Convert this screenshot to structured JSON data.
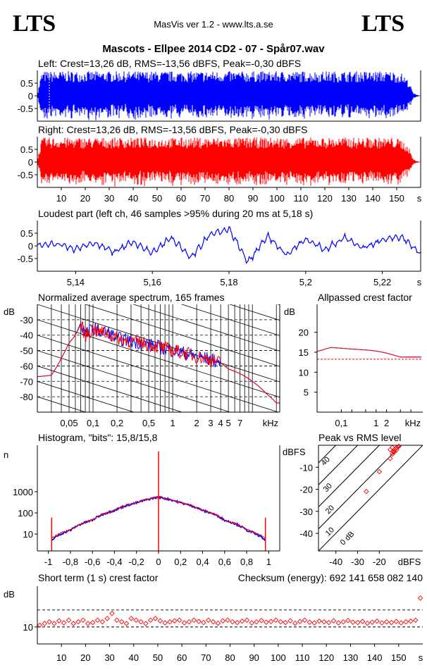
{
  "header": {
    "logo_left": "LTS",
    "logo_right": "LTS",
    "app_title": "MasVis ver 1.2 - www.lts.a.se",
    "file_title": "Mascots - Ellpee 2014 CD2 - 07 - Spår07.wav"
  },
  "colors": {
    "left": "#0000ff",
    "right": "#ff0000",
    "axis": "#000000",
    "grid": "#000000"
  },
  "chart_data": [
    {
      "id": "left_wave",
      "type": "area",
      "title": "Left: Crest=13,26 dB, RMS=-13,56 dBFS, Peak=-0,30 dBFS",
      "yticks": [
        "0.5",
        "0",
        "-0.5"
      ],
      "ytick_values": [
        0.5,
        0,
        -0.5
      ],
      "ylim": [
        -1,
        1
      ],
      "xlim": [
        0,
        160
      ],
      "series_color": "#0000ff",
      "envelope": {
        "t": [
          0,
          1,
          2,
          3,
          148,
          152,
          155,
          157,
          160
        ],
        "amp": [
          0.0,
          0.6,
          0.95,
          0.97,
          0.97,
          0.9,
          0.6,
          0.1,
          0.0
        ]
      }
    },
    {
      "id": "right_wave",
      "type": "area",
      "title": "Right: Crest=13,26 dB, RMS=-13,56 dBFS, Peak=-0,30 dBFS",
      "yticks": [
        "0.5",
        "0",
        "-0.5"
      ],
      "ytick_values": [
        0.5,
        0,
        -0.5
      ],
      "ylim": [
        -1,
        1
      ],
      "xlim": [
        0,
        160
      ],
      "series_color": "#ff0000",
      "xticks": [
        "10",
        "20",
        "30",
        "40",
        "50",
        "60",
        "70",
        "80",
        "90",
        "100",
        "110",
        "120",
        "130",
        "140",
        "150",
        "s"
      ],
      "xtick_values": [
        10,
        20,
        30,
        40,
        50,
        60,
        70,
        80,
        90,
        100,
        110,
        120,
        130,
        140,
        150
      ],
      "envelope": {
        "t": [
          0,
          1,
          2,
          3,
          148,
          152,
          155,
          157,
          160
        ],
        "amp": [
          0.0,
          0.6,
          0.95,
          0.97,
          0.97,
          0.9,
          0.6,
          0.1,
          0.0
        ]
      }
    },
    {
      "id": "loudest",
      "type": "line",
      "title": "Loudest part (left  ch, 46 samples >95% during 20 ms at 5,18 s)",
      "yticks": [
        "0.5",
        "0",
        "-0.5"
      ],
      "ytick_values": [
        0.5,
        0,
        -0.5
      ],
      "ylim": [
        -1,
        1
      ],
      "xlim": [
        5.13,
        5.23
      ],
      "xticks": [
        "5,14",
        "5,16",
        "5,18",
        "5,2",
        "5,22",
        "s"
      ],
      "xtick_values": [
        5.14,
        5.16,
        5.18,
        5.2,
        5.22
      ],
      "series_color": "#0000ff",
      "x": [
        5.13,
        5.135,
        5.14,
        5.145,
        5.15,
        5.155,
        5.16,
        5.165,
        5.17,
        5.175,
        5.18,
        5.185,
        5.19,
        5.195,
        5.2,
        5.205,
        5.21,
        5.215,
        5.22,
        5.225,
        5.23
      ],
      "y": [
        0.05,
        0.1,
        -0.15,
        0.15,
        -0.3,
        0.2,
        -0.35,
        0.4,
        -0.6,
        0.55,
        0.85,
        -0.8,
        0.5,
        -0.45,
        0.35,
        -0.2,
        0.4,
        -0.1,
        0.3,
        0.45,
        -0.4
      ]
    },
    {
      "id": "spectrum",
      "type": "line",
      "title": "Normalized average spectrum, 165 frames",
      "ylabel": "dB",
      "yticks": [
        "-30",
        "-40",
        "-50",
        "-60",
        "-70",
        "-80"
      ],
      "ytick_values": [
        -30,
        -40,
        -50,
        -60,
        -70,
        -80
      ],
      "ylim": [
        -90,
        -20
      ],
      "xlim_hz": [
        20,
        22050
      ],
      "xscale": "log",
      "xticks": [
        "0,05",
        "0,1",
        "0,2",
        "0,5",
        "1",
        "2",
        "3",
        "4",
        "5",
        "7",
        "kHz"
      ],
      "xtick_values_khz": [
        0.05,
        0.1,
        0.2,
        0.5,
        1,
        2,
        3,
        4,
        5,
        7
      ],
      "series": [
        {
          "name": "left",
          "color": "#0000ff",
          "f_khz": [
            0.02,
            0.03,
            0.04,
            0.05,
            0.06,
            0.07,
            0.08,
            0.1,
            0.12,
            0.15,
            0.2,
            0.3,
            0.5,
            0.7,
            1,
            1.5,
            2,
            3,
            4,
            5,
            7,
            10,
            15,
            20
          ],
          "db": [
            -67,
            -66,
            -55,
            -45,
            -40,
            -32,
            -40,
            -35,
            -38,
            -38,
            -42,
            -44,
            -46,
            -48,
            -50,
            -52,
            -54,
            -56,
            -58,
            -62,
            -65,
            -70,
            -78,
            -84
          ]
        },
        {
          "name": "right",
          "color": "#ff0000",
          "f_khz": [
            0.02,
            0.03,
            0.04,
            0.05,
            0.06,
            0.07,
            0.08,
            0.1,
            0.12,
            0.15,
            0.2,
            0.3,
            0.5,
            0.7,
            1,
            1.5,
            2,
            3,
            4,
            5,
            7,
            10,
            15,
            20
          ],
          "db": [
            -67,
            -66,
            -55,
            -45,
            -40,
            -33,
            -40,
            -36,
            -38,
            -39,
            -42,
            -44,
            -46,
            -48,
            -50,
            -52,
            -54,
            -56,
            -58,
            -62,
            -65,
            -70,
            -78,
            -84
          ]
        }
      ]
    },
    {
      "id": "allpass",
      "type": "line",
      "title": "Allpassed crest factor",
      "ylabel": "dB",
      "yticks": [
        "20",
        "15",
        "10",
        "5"
      ],
      "ytick_values": [
        20,
        15,
        10,
        5
      ],
      "ylim": [
        0,
        27
      ],
      "xscale": "log",
      "xticks": [
        "0,1",
        "1",
        "2",
        "kHz"
      ],
      "xtick_values_khz": [
        0.1,
        1,
        2
      ],
      "reference_db": 13.26,
      "series": [
        {
          "name": "left",
          "color": "#0000ff",
          "f_khz": [
            0.02,
            0.05,
            0.1,
            0.2,
            0.5,
            1,
            2,
            5,
            20
          ],
          "db": [
            15.2,
            16.2,
            16.0,
            15.8,
            15.6,
            15.3,
            14.8,
            13.8,
            13.8
          ]
        },
        {
          "name": "right",
          "color": "#ff0000",
          "f_khz": [
            0.02,
            0.05,
            0.1,
            0.2,
            0.5,
            1,
            2,
            5,
            20
          ],
          "db": [
            15.2,
            16.2,
            16.0,
            15.8,
            15.6,
            15.3,
            14.8,
            13.8,
            13.8
          ]
        }
      ]
    },
    {
      "id": "histogram",
      "type": "line",
      "title": "Histogram, \"bits\": 15,8/15,8",
      "ylabel": "n",
      "yscale": "log",
      "yticks": [
        "1000",
        "100",
        "10"
      ],
      "ytick_values": [
        1000,
        100,
        10
      ],
      "xlim": [
        -1.1,
        1.1
      ],
      "xticks": [
        "-1",
        "-0,8",
        "-0,6",
        "-0,4",
        "-0,2",
        "0",
        "0,2",
        "0,4",
        "0,6",
        "0,8",
        "1"
      ],
      "xtick_values": [
        -1,
        -0.8,
        -0.6,
        -0.4,
        -0.2,
        0,
        0.2,
        0.4,
        0.6,
        0.8,
        1
      ],
      "series": [
        {
          "name": "left",
          "color": "#0000ff",
          "x": [
            -0.97,
            -0.8,
            -0.6,
            -0.4,
            -0.2,
            0,
            0.2,
            0.4,
            0.6,
            0.8,
            0.97
          ],
          "n": [
            5,
            15,
            45,
            130,
            300,
            560,
            300,
            130,
            45,
            15,
            5
          ]
        },
        {
          "name": "right",
          "color": "#ff0000",
          "x": [
            -0.97,
            -0.8,
            -0.6,
            -0.4,
            -0.2,
            0,
            0.2,
            0.4,
            0.6,
            0.8,
            0.97
          ],
          "n": [
            6,
            16,
            46,
            132,
            305,
            570,
            305,
            132,
            46,
            16,
            6
          ]
        }
      ],
      "spikes": [
        {
          "x": -0.97,
          "n": 60
        },
        {
          "x": 0,
          "n": 80000
        },
        {
          "x": 0.97,
          "n": 60
        }
      ]
    },
    {
      "id": "peak_rms",
      "type": "scatter",
      "title": "Peak vs RMS level",
      "ylabel": "dBFS",
      "yticks": [
        "-10",
        "-20",
        "-30",
        "-40"
      ],
      "ytick_values": [
        -10,
        -20,
        -30,
        -40
      ],
      "xticks": [
        "-40",
        "-30",
        "-20",
        "dBFS"
      ],
      "xtick_values": [
        -40,
        -30,
        -20
      ],
      "xlim": [
        -48,
        0
      ],
      "ylim": [
        -48,
        0
      ],
      "diag_labels": [
        "40",
        "30",
        "20",
        "10",
        "0 dB"
      ],
      "diag_values": [
        40,
        30,
        20,
        10,
        0
      ],
      "series": [
        {
          "name": "points",
          "color": "#ff0000",
          "x": [
            -26,
            -20,
            -15,
            -14,
            -13.5,
            -13,
            -12.5,
            -12,
            -11,
            -12,
            -13,
            -14,
            -15
          ],
          "y": [
            -21,
            -12,
            -6,
            -4,
            -3,
            -2,
            -1.5,
            -1,
            -0.5,
            -2,
            -3,
            -1,
            -2
          ]
        }
      ]
    },
    {
      "id": "short_crest",
      "type": "scatter",
      "title": "Short term (1 s) crest factor",
      "checksum_text": "Checksum (energy):   692 141 658 082 140",
      "ylabel": "dB",
      "yticks": [
        "10"
      ],
      "ytick_values": [
        10
      ],
      "ylim": [
        5,
        22
      ],
      "xlim": [
        0,
        160
      ],
      "xticks": [
        "10",
        "20",
        "30",
        "40",
        "50",
        "60",
        "70",
        "80",
        "90",
        "100",
        "110",
        "120",
        "130",
        "140",
        "150",
        "s"
      ],
      "xtick_values": [
        10,
        20,
        30,
        40,
        50,
        60,
        70,
        80,
        90,
        100,
        110,
        120,
        130,
        140,
        150
      ],
      "dashed_levels": [
        10,
        15
      ],
      "series_color": "#ff0000",
      "x": [
        1,
        3,
        5,
        7,
        9,
        11,
        13,
        15,
        17,
        19,
        21,
        23,
        25,
        27,
        29,
        31,
        33,
        35,
        37,
        39,
        41,
        43,
        45,
        47,
        49,
        51,
        53,
        55,
        57,
        59,
        61,
        63,
        65,
        67,
        69,
        71,
        73,
        75,
        77,
        79,
        81,
        83,
        85,
        87,
        89,
        91,
        93,
        95,
        97,
        99,
        101,
        103,
        105,
        107,
        109,
        111,
        113,
        115,
        117,
        119,
        121,
        123,
        125,
        127,
        129,
        131,
        133,
        135,
        137,
        139,
        141,
        143,
        145,
        147,
        149,
        151,
        153,
        155,
        157,
        159
      ],
      "y": [
        10.5,
        11,
        11.5,
        11,
        11.8,
        11.2,
        12,
        11,
        11.5,
        12,
        11,
        11.3,
        12,
        11.5,
        12.5,
        14,
        12,
        11.5,
        11,
        12.5,
        12,
        11.5,
        11,
        12,
        12.5,
        11.8,
        11.2,
        11.5,
        11.8,
        12,
        11.2,
        11.5,
        12,
        11.6,
        11.3,
        12,
        11.5,
        11.1,
        11.8,
        12,
        11.5,
        11.3,
        11.7,
        12,
        11.2,
        11.5,
        11.9,
        11.4,
        11.6,
        12,
        11.5,
        11.3,
        11.8,
        11.1,
        11.6,
        12,
        11.4,
        11.2,
        11.7,
        11.5,
        11.3,
        11.8,
        11.2,
        11.5,
        11.9,
        11.4,
        11.3,
        11.6,
        11.1,
        11.4,
        11.7,
        11.2,
        11.5,
        11.3,
        11.6,
        11.2,
        11.5,
        11.7,
        12,
        18.5
      ]
    }
  ]
}
